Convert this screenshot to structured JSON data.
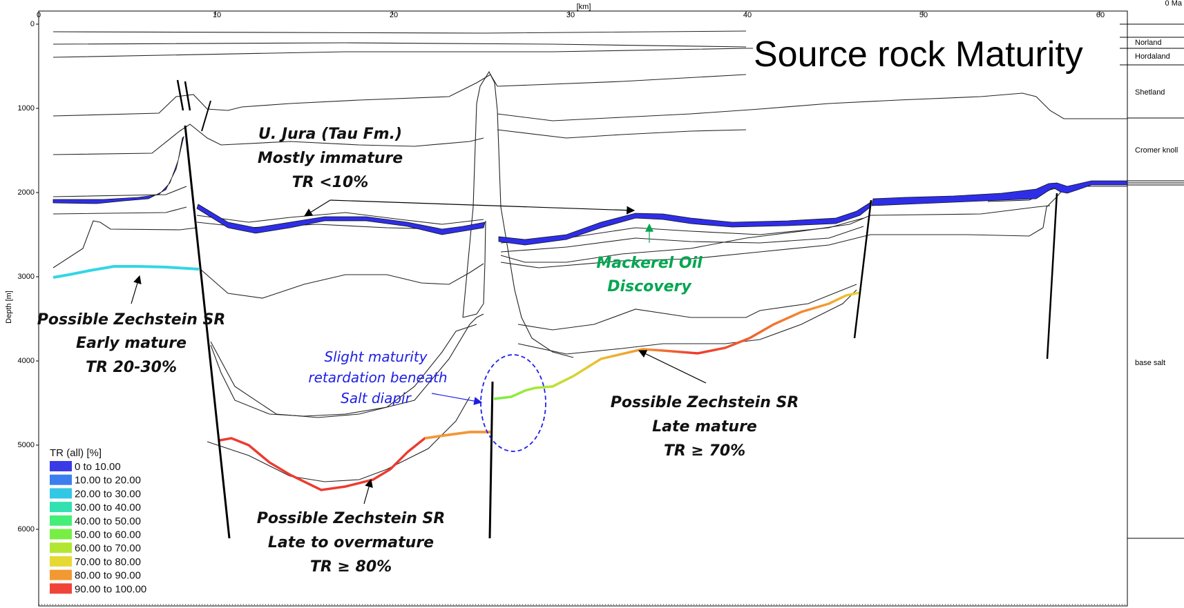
{
  "title": "Source rock Maturity",
  "axes": {
    "x_unit": "[km]",
    "x_ticks": [
      "0",
      "10",
      "20",
      "30",
      "40",
      "50",
      "60"
    ],
    "y_label": "Depth [m]",
    "y_ticks": [
      "0",
      "1000",
      "2000",
      "3000",
      "4000",
      "5000",
      "6000"
    ],
    "top_right_label": "0 Ma"
  },
  "stratigraphy": [
    "Norland",
    "Hordaland",
    "Shetland",
    "Cromer knoll",
    "base salt"
  ],
  "annotations": {
    "ujura": [
      "U. Jura (Tau Fm.)",
      "Mostly immature",
      "TR <10%"
    ],
    "mackerel": [
      "Mackerel Oil",
      "Discovery"
    ],
    "zech_early": [
      "Possible Zechstein SR",
      "Early mature",
      "TR 20-30%"
    ],
    "retard": [
      "Slight maturity",
      "retardation beneath",
      "Salt diapir"
    ],
    "zech_late": [
      "Possible Zechstein SR",
      "Late mature",
      "TR ≥ 70%"
    ],
    "zech_over": [
      "Possible Zechstein SR",
      "Late to overmature",
      "TR ≥ 80%"
    ]
  },
  "legend": {
    "title": "TR (all) [%]",
    "items": [
      {
        "label": "0 to 10.00",
        "color": "#3a3ae6"
      },
      {
        "label": "10.00 to 20.00",
        "color": "#3a7ef0"
      },
      {
        "label": "20.00 to 30.00",
        "color": "#33c7e6"
      },
      {
        "label": "30.00 to 40.00",
        "color": "#33e0b0"
      },
      {
        "label": "40.00 to 50.00",
        "color": "#44ee77"
      },
      {
        "label": "50.00 to 60.00",
        "color": "#77ee44"
      },
      {
        "label": "60.00 to 70.00",
        "color": "#b3e633"
      },
      {
        "label": "70.00 to 80.00",
        "color": "#e6d933"
      },
      {
        "label": "80.00 to 90.00",
        "color": "#f29933"
      },
      {
        "label": "90.00 to 100.00",
        "color": "#f04438"
      }
    ]
  },
  "colors": {
    "immature_blue": "#2e2ee8",
    "early_cyan": "#33d6e6",
    "mackerel_green": "#00a651",
    "retard_blue": "#1e1ee6",
    "overmature_red": "#ee3a30"
  }
}
